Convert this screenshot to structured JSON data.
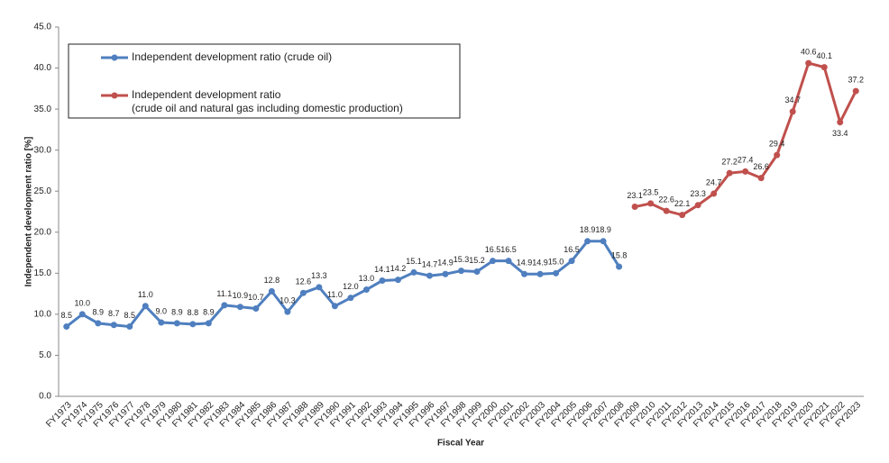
{
  "chart_data": {
    "type": "line",
    "x_label": "Fiscal Year",
    "y_label": "Independent development ratio [%]",
    "categories": [
      "FY1973",
      "FY1974",
      "FY1975",
      "FY1976",
      "FY1977",
      "FY1978",
      "FY1979",
      "FY1980",
      "FY1981",
      "FY1982",
      "FY1983",
      "FY1984",
      "FY1985",
      "FY1986",
      "FY1987",
      "FY1988",
      "FY1989",
      "FY1990",
      "FY1991",
      "FY1992",
      "FY1993",
      "FY1994",
      "FY1995",
      "FY1996",
      "FY1997",
      "FY1998",
      "FY1999",
      "FY2000",
      "FY2001",
      "FY2002",
      "FY2003",
      "FY2004",
      "FY2005",
      "FY2006",
      "FY2007",
      "FY2008",
      "FY2009",
      "FY2010",
      "FY2011",
      "FY2012",
      "FY2013",
      "FY2014",
      "FY2015",
      "FY2016",
      "FY2017",
      "FY2018",
      "FY2019",
      "FY2020",
      "FY2021",
      "FY2022",
      "FY2023"
    ],
    "series": [
      {
        "name": "Independent development ratio (crude oil)",
        "color": "#4f7fbf",
        "values": [
          8.5,
          10.0,
          8.9,
          8.7,
          8.5,
          11.0,
          9.0,
          8.9,
          8.8,
          8.9,
          11.1,
          10.9,
          10.7,
          12.8,
          10.3,
          12.6,
          13.3,
          11.0,
          12.0,
          13.0,
          14.1,
          14.2,
          15.1,
          14.7,
          14.9,
          15.3,
          15.2,
          16.5,
          16.5,
          14.9,
          14.9,
          15.0,
          16.5,
          18.9,
          18.9,
          15.8,
          null,
          null,
          null,
          null,
          null,
          null,
          null,
          null,
          null,
          null,
          null,
          null,
          null,
          null,
          null
        ],
        "value_labels": [
          "8.5",
          "10.0",
          "8.9",
          "8.7",
          "8.5",
          "11.0",
          "9.0",
          "8.9",
          "8.8",
          "8.9",
          "11.1",
          "10.9",
          "10.7",
          "12.8",
          "10.3",
          "12.6",
          "13.3",
          "11.0",
          "12.0",
          "13.0",
          "14.1",
          "14.2",
          "15.1",
          "14.7",
          "14.9",
          "15.3",
          "15.2",
          "16.5",
          "16.5",
          "14.9",
          "14.9",
          "15.0",
          "16.5",
          "18.9",
          "18.9",
          "15.8",
          null,
          null,
          null,
          null,
          null,
          null,
          null,
          null,
          null,
          null,
          null,
          null,
          null,
          null,
          null
        ]
      },
      {
        "name": "Independent development ratio\n(crude oil and natural gas including domestic production)",
        "color": "#c0504d",
        "values": [
          null,
          null,
          null,
          null,
          null,
          null,
          null,
          null,
          null,
          null,
          null,
          null,
          null,
          null,
          null,
          null,
          null,
          null,
          null,
          null,
          null,
          null,
          null,
          null,
          null,
          null,
          null,
          null,
          null,
          null,
          null,
          null,
          null,
          null,
          null,
          null,
          23.1,
          23.5,
          22.6,
          22.1,
          23.3,
          24.7,
          27.2,
          27.4,
          26.6,
          29.4,
          34.7,
          40.6,
          40.1,
          33.4,
          37.2
        ],
        "value_labels": [
          null,
          null,
          null,
          null,
          null,
          null,
          null,
          null,
          null,
          null,
          null,
          null,
          null,
          null,
          null,
          null,
          null,
          null,
          null,
          null,
          null,
          null,
          null,
          null,
          null,
          null,
          null,
          null,
          null,
          null,
          null,
          null,
          null,
          null,
          null,
          null,
          "23.1",
          "23.5",
          "22.6",
          "22.1",
          "23.3",
          "24.7",
          "27.2",
          "27.4",
          "26.6",
          "29.4",
          "34.7",
          "40.6",
          "40.1",
          "33.4",
          "37.2"
        ]
      }
    ],
    "ylim": [
      0,
      45
    ],
    "yticks": [
      {
        "value": 0,
        "label": "0.0"
      },
      {
        "value": 5,
        "label": "5.0"
      },
      {
        "value": 10,
        "label": "10.0"
      },
      {
        "value": 15,
        "label": "15.0"
      },
      {
        "value": 20,
        "label": "20.0"
      },
      {
        "value": 25,
        "label": "25.0"
      },
      {
        "value": 30,
        "label": "30.0"
      },
      {
        "value": 35,
        "label": "35.0"
      },
      {
        "value": 40,
        "label": "40.0"
      },
      {
        "value": 45,
        "label": "45.0"
      }
    ],
    "grid": false
  }
}
